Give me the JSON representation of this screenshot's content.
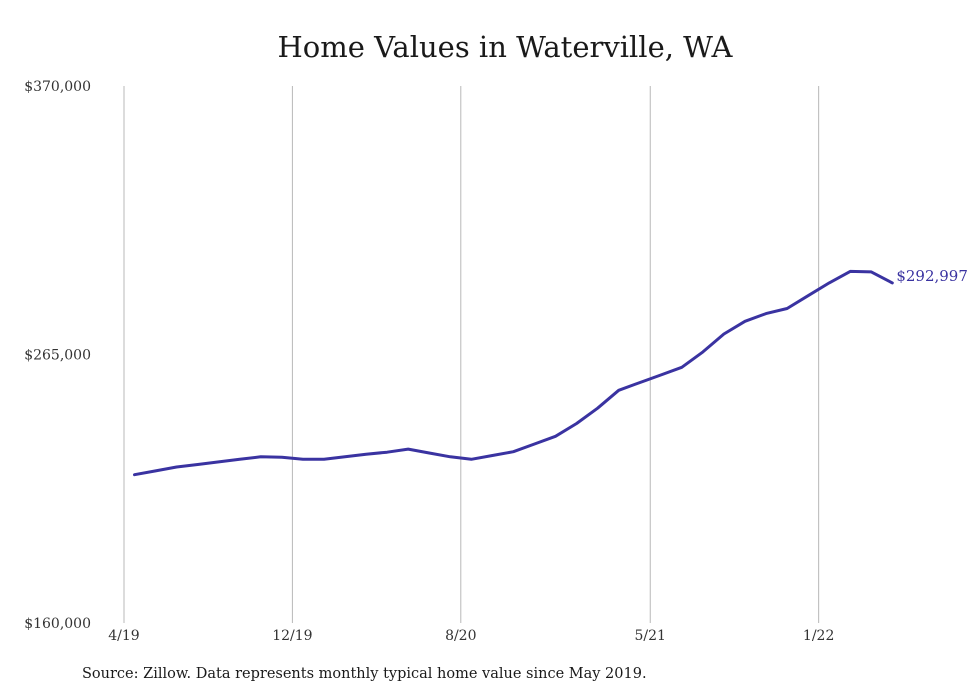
{
  "chart_data": {
    "type": "line",
    "title": "Home Values in Waterville, WA",
    "xlabel": "",
    "ylabel": "",
    "x_tick_labels": [
      "4/19",
      "12/19",
      "8/20",
      "5/21",
      "1/22"
    ],
    "y_tick_labels": [
      "$370,000",
      "$265,000",
      "$160,000"
    ],
    "ylim": [
      160000,
      370000
    ],
    "grid": "vertical",
    "series": [
      {
        "color": "#3a33a1",
        "x": [
          "5/19",
          "6/19",
          "7/19",
          "8/19",
          "9/19",
          "10/19",
          "11/19",
          "12/19",
          "1/20",
          "2/20",
          "3/20",
          "4/20",
          "5/20",
          "6/20",
          "7/20",
          "8/20",
          "9/20",
          "10/20",
          "11/20",
          "12/20",
          "1/21",
          "2/21",
          "3/21",
          "4/21",
          "5/21",
          "6/21",
          "7/21",
          "8/21",
          "9/21",
          "10/21",
          "11/21",
          "12/21",
          "1/22",
          "2/22",
          "3/22",
          "4/22",
          "5/22"
        ],
        "values": [
          218000,
          219500,
          221000,
          222000,
          223000,
          224000,
          225000,
          224800,
          224000,
          224000,
          225000,
          226000,
          226800,
          228000,
          226500,
          225000,
          224000,
          225500,
          227000,
          230000,
          233000,
          238000,
          244000,
          251000,
          254000,
          257000,
          260000,
          266000,
          273000,
          278000,
          281000,
          283000,
          288000,
          293000,
          297500,
          297300,
          292997
        ]
      }
    ],
    "end_label": "$292,997",
    "source": "Source: Zillow. Data represents monthly typical home value since May 2019."
  }
}
